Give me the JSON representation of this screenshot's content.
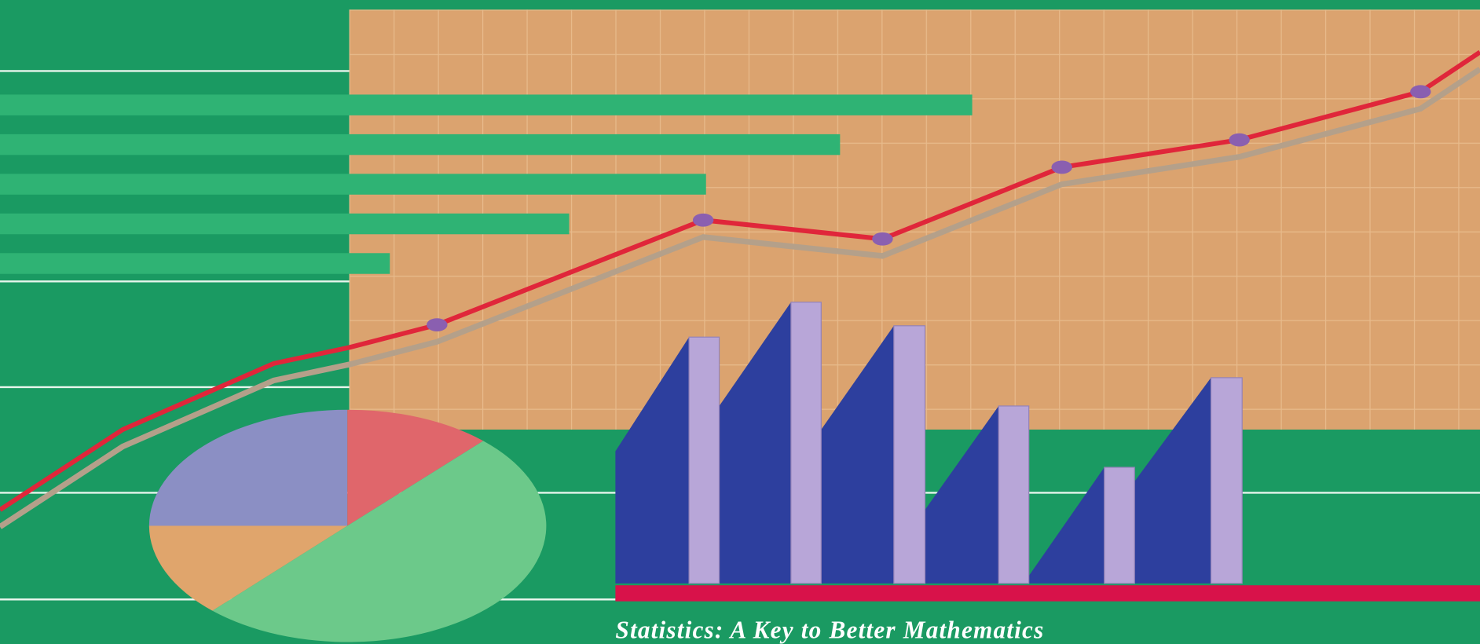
{
  "caption": "Statistics: A Key to Better Mathematics"
}
